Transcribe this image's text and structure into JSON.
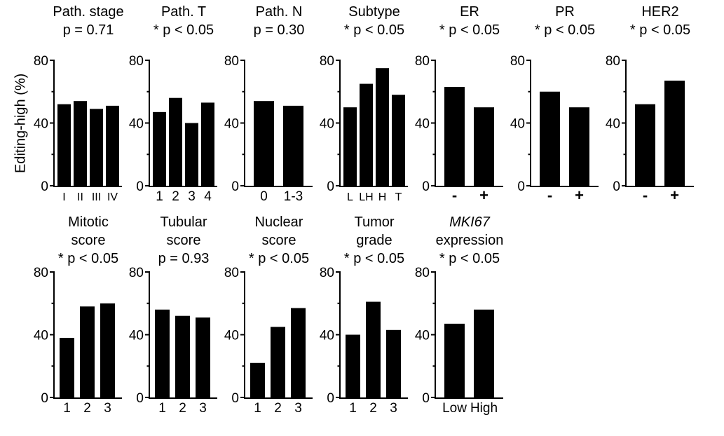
{
  "figure": {
    "ylabel": "Editing-high (%)",
    "background": "#ffffff",
    "bar_color": "#000000",
    "axis_color": "#000000",
    "text_color": "#000000"
  },
  "chart_data": [
    {
      "type": "bar",
      "title_lines": [
        "Path. stage"
      ],
      "p_label": "p = 0.71",
      "significant": false,
      "categories": [
        "I",
        "II",
        "III",
        "IV"
      ],
      "values": [
        52,
        54,
        49,
        51
      ],
      "ylim": [
        0,
        80
      ],
      "yticks": [
        0,
        40,
        80
      ],
      "minor_yticks": [
        20,
        60
      ],
      "legend": false,
      "grid": false
    },
    {
      "type": "bar",
      "title_lines": [
        "Path. T"
      ],
      "p_label": "* p < 0.05",
      "significant": true,
      "categories": [
        "1",
        "2",
        "3",
        "4"
      ],
      "values": [
        47,
        56,
        40,
        53
      ],
      "ylim": [
        0,
        80
      ],
      "yticks": [
        0,
        40,
        80
      ],
      "minor_yticks": [
        20,
        60
      ],
      "legend": false,
      "grid": false
    },
    {
      "type": "bar",
      "title_lines": [
        "Path. N"
      ],
      "p_label": "p = 0.30",
      "significant": false,
      "categories": [
        "0",
        "1-3"
      ],
      "values": [
        54,
        51
      ],
      "ylim": [
        0,
        80
      ],
      "yticks": [
        0,
        40,
        80
      ],
      "minor_yticks": [
        20,
        60
      ],
      "legend": false,
      "grid": false
    },
    {
      "type": "bar",
      "title_lines": [
        "Subtype"
      ],
      "p_label": "* p < 0.05",
      "significant": true,
      "categories": [
        "L",
        "LH",
        "H",
        "T"
      ],
      "values": [
        50,
        65,
        75,
        58
      ],
      "ylim": [
        0,
        80
      ],
      "yticks": [
        0,
        40,
        80
      ],
      "minor_yticks": [
        20,
        60
      ],
      "legend": false,
      "grid": false
    },
    {
      "type": "bar",
      "title_lines": [
        "ER"
      ],
      "p_label": "* p < 0.05",
      "significant": true,
      "categories": [
        "-",
        "+"
      ],
      "values": [
        63,
        50
      ],
      "ylim": [
        0,
        80
      ],
      "yticks": [
        0,
        40,
        80
      ],
      "minor_yticks": [
        20,
        60
      ],
      "legend": false,
      "grid": false
    },
    {
      "type": "bar",
      "title_lines": [
        "PR"
      ],
      "p_label": "* p < 0.05",
      "significant": true,
      "categories": [
        "-",
        "+"
      ],
      "values": [
        60,
        50
      ],
      "ylim": [
        0,
        80
      ],
      "yticks": [
        0,
        40,
        80
      ],
      "minor_yticks": [
        20,
        60
      ],
      "legend": false,
      "grid": false
    },
    {
      "type": "bar",
      "title_lines": [
        "HER2"
      ],
      "p_label": "* p < 0.05",
      "significant": true,
      "categories": [
        "-",
        "+"
      ],
      "values": [
        52,
        67
      ],
      "ylim": [
        0,
        80
      ],
      "yticks": [
        0,
        40,
        80
      ],
      "minor_yticks": [
        20,
        60
      ],
      "legend": false,
      "grid": false
    },
    {
      "type": "bar",
      "title_lines": [
        "Mitotic",
        "score"
      ],
      "p_label": "* p < 0.05",
      "significant": true,
      "categories": [
        "1",
        "2",
        "3"
      ],
      "values": [
        38,
        58,
        60
      ],
      "ylim": [
        0,
        80
      ],
      "yticks": [
        0,
        40,
        80
      ],
      "minor_yticks": [
        20,
        60
      ],
      "legend": false,
      "grid": false
    },
    {
      "type": "bar",
      "title_lines": [
        "Tubular",
        "score"
      ],
      "p_label": "p = 0.93",
      "significant": false,
      "categories": [
        "1",
        "2",
        "3"
      ],
      "values": [
        56,
        52,
        51
      ],
      "ylim": [
        0,
        80
      ],
      "yticks": [
        0,
        40,
        80
      ],
      "minor_yticks": [
        20,
        60
      ],
      "legend": false,
      "grid": false
    },
    {
      "type": "bar",
      "title_lines": [
        "Nuclear",
        "score"
      ],
      "p_label": "* p < 0.05",
      "significant": true,
      "categories": [
        "1",
        "2",
        "3"
      ],
      "values": [
        22,
        45,
        57
      ],
      "ylim": [
        0,
        80
      ],
      "yticks": [
        0,
        40,
        80
      ],
      "minor_yticks": [
        20,
        60
      ],
      "legend": false,
      "grid": false
    },
    {
      "type": "bar",
      "title_lines": [
        "Tumor",
        "grade"
      ],
      "p_label": "* p < 0.05",
      "significant": true,
      "categories": [
        "1",
        "2",
        "3"
      ],
      "values": [
        40,
        61,
        43
      ],
      "ylim": [
        0,
        80
      ],
      "yticks": [
        0,
        40,
        80
      ],
      "minor_yticks": [
        20,
        60
      ],
      "legend": false,
      "grid": false
    },
    {
      "type": "bar",
      "title_lines": [
        "MKI67",
        "expression"
      ],
      "italic_title_lines": [
        0
      ],
      "p_label": "* p < 0.05",
      "significant": true,
      "categories": [
        "Low",
        "High"
      ],
      "values": [
        47,
        56
      ],
      "ylim": [
        0,
        80
      ],
      "yticks": [
        0,
        40,
        80
      ],
      "minor_yticks": [
        20,
        60
      ],
      "legend": false,
      "grid": false
    }
  ]
}
